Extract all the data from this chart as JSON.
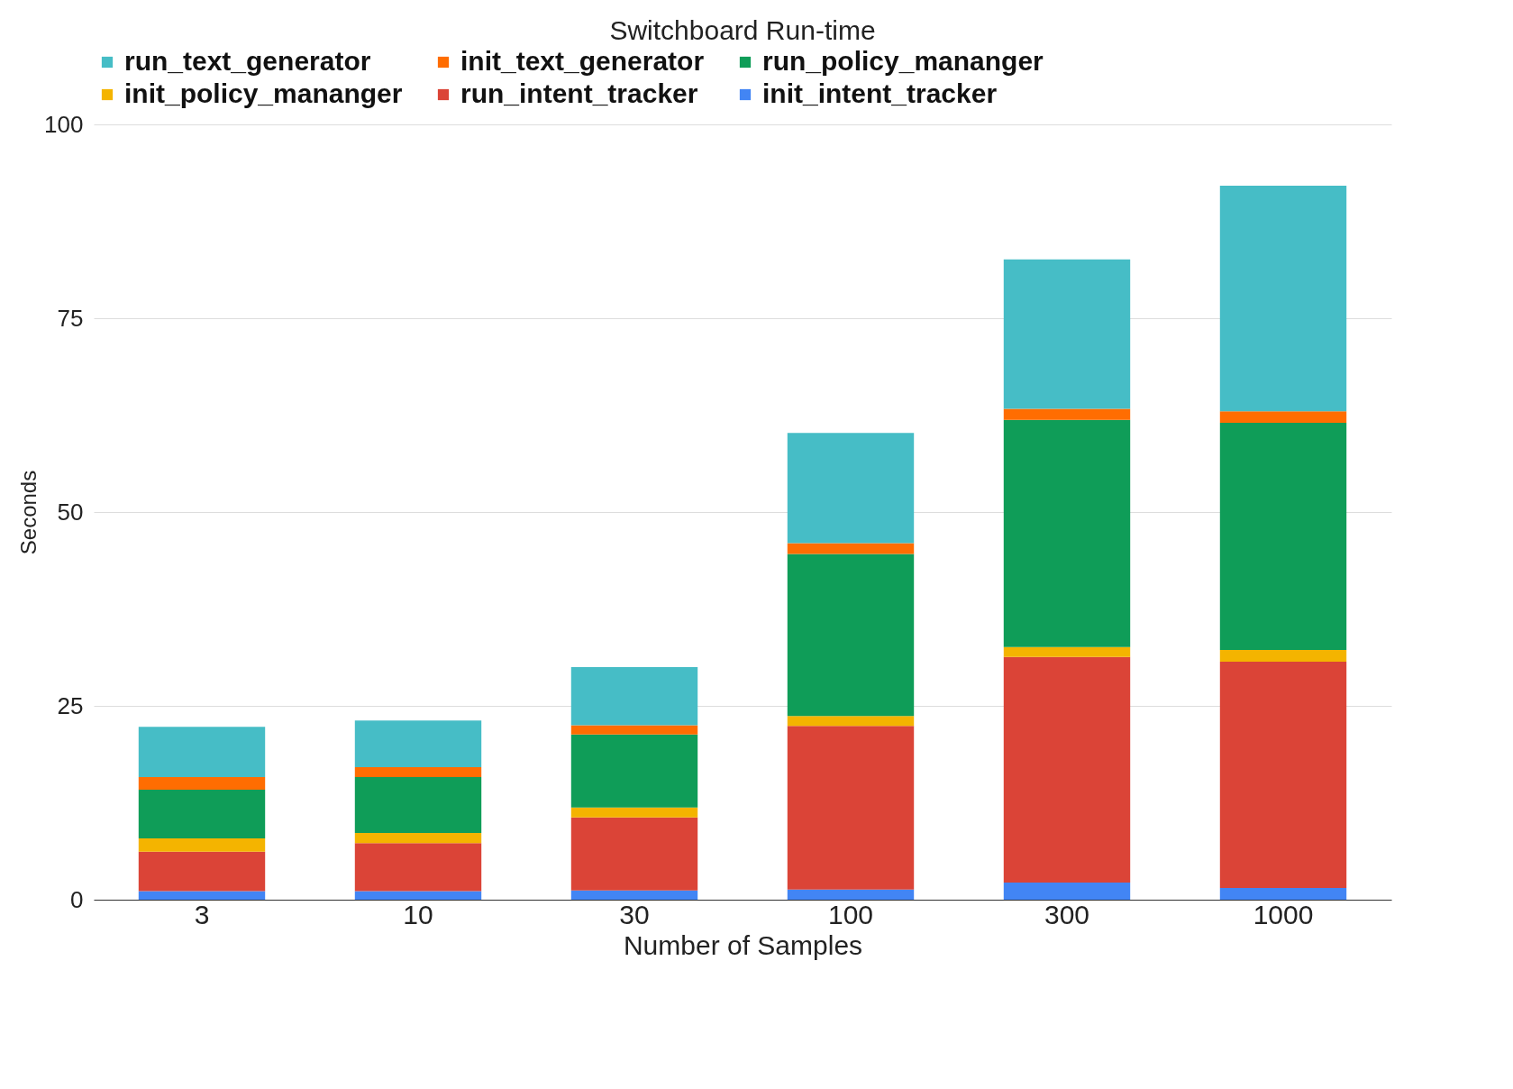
{
  "chart_data": {
    "type": "bar",
    "title": "Switchboard Run-time",
    "xlabel": "Number of Samples",
    "ylabel": "Seconds",
    "categories": [
      "3",
      "10",
      "30",
      "100",
      "300",
      "1000"
    ],
    "stacked": true,
    "ylim": [
      0,
      100
    ],
    "yticks": [
      0,
      25,
      50,
      75,
      100
    ],
    "grid": "y",
    "legend": "top",
    "series": [
      {
        "name": "init_intent_tracker",
        "color": "#4285f4",
        "values": [
          1.1,
          1.1,
          1.2,
          1.3,
          2.2,
          1.5
        ]
      },
      {
        "name": "run_intent_tracker",
        "color": "#db4437",
        "values": [
          5.1,
          6.2,
          9.4,
          21.1,
          29.1,
          29.2
        ]
      },
      {
        "name": "init_policy_mananger",
        "color": "#f4b400",
        "values": [
          1.7,
          1.3,
          1.3,
          1.3,
          1.3,
          1.5
        ]
      },
      {
        "name": "run_policy_mananger",
        "color": "#0f9d58",
        "values": [
          6.3,
          7.2,
          9.4,
          20.9,
          29.3,
          29.3
        ]
      },
      {
        "name": "init_text_generator",
        "color": "#ff6d01",
        "values": [
          1.6,
          1.3,
          1.2,
          1.4,
          1.4,
          1.5
        ]
      },
      {
        "name": "run_text_generator",
        "color": "#46bdc6",
        "values": [
          6.5,
          6.0,
          7.5,
          14.2,
          19.3,
          29.1
        ]
      }
    ]
  }
}
